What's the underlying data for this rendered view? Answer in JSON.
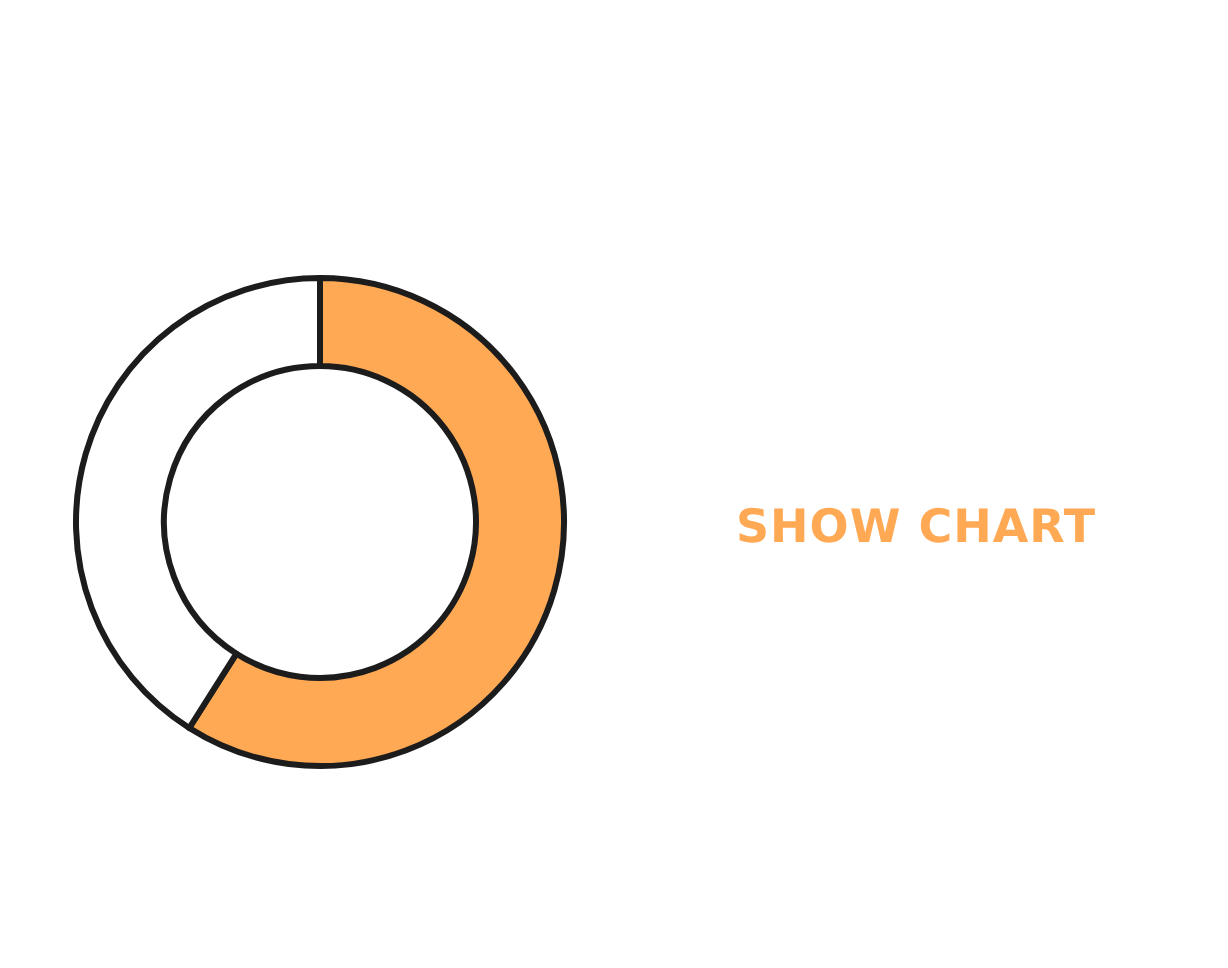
{
  "chart_data": {
    "type": "donut",
    "categories": [
      null,
      null
    ],
    "values": [
      59,
      41
    ],
    "colors": [
      "#ffa955",
      "#ffffff"
    ],
    "annotations": [
      "SHOW CHART"
    ]
  }
}
